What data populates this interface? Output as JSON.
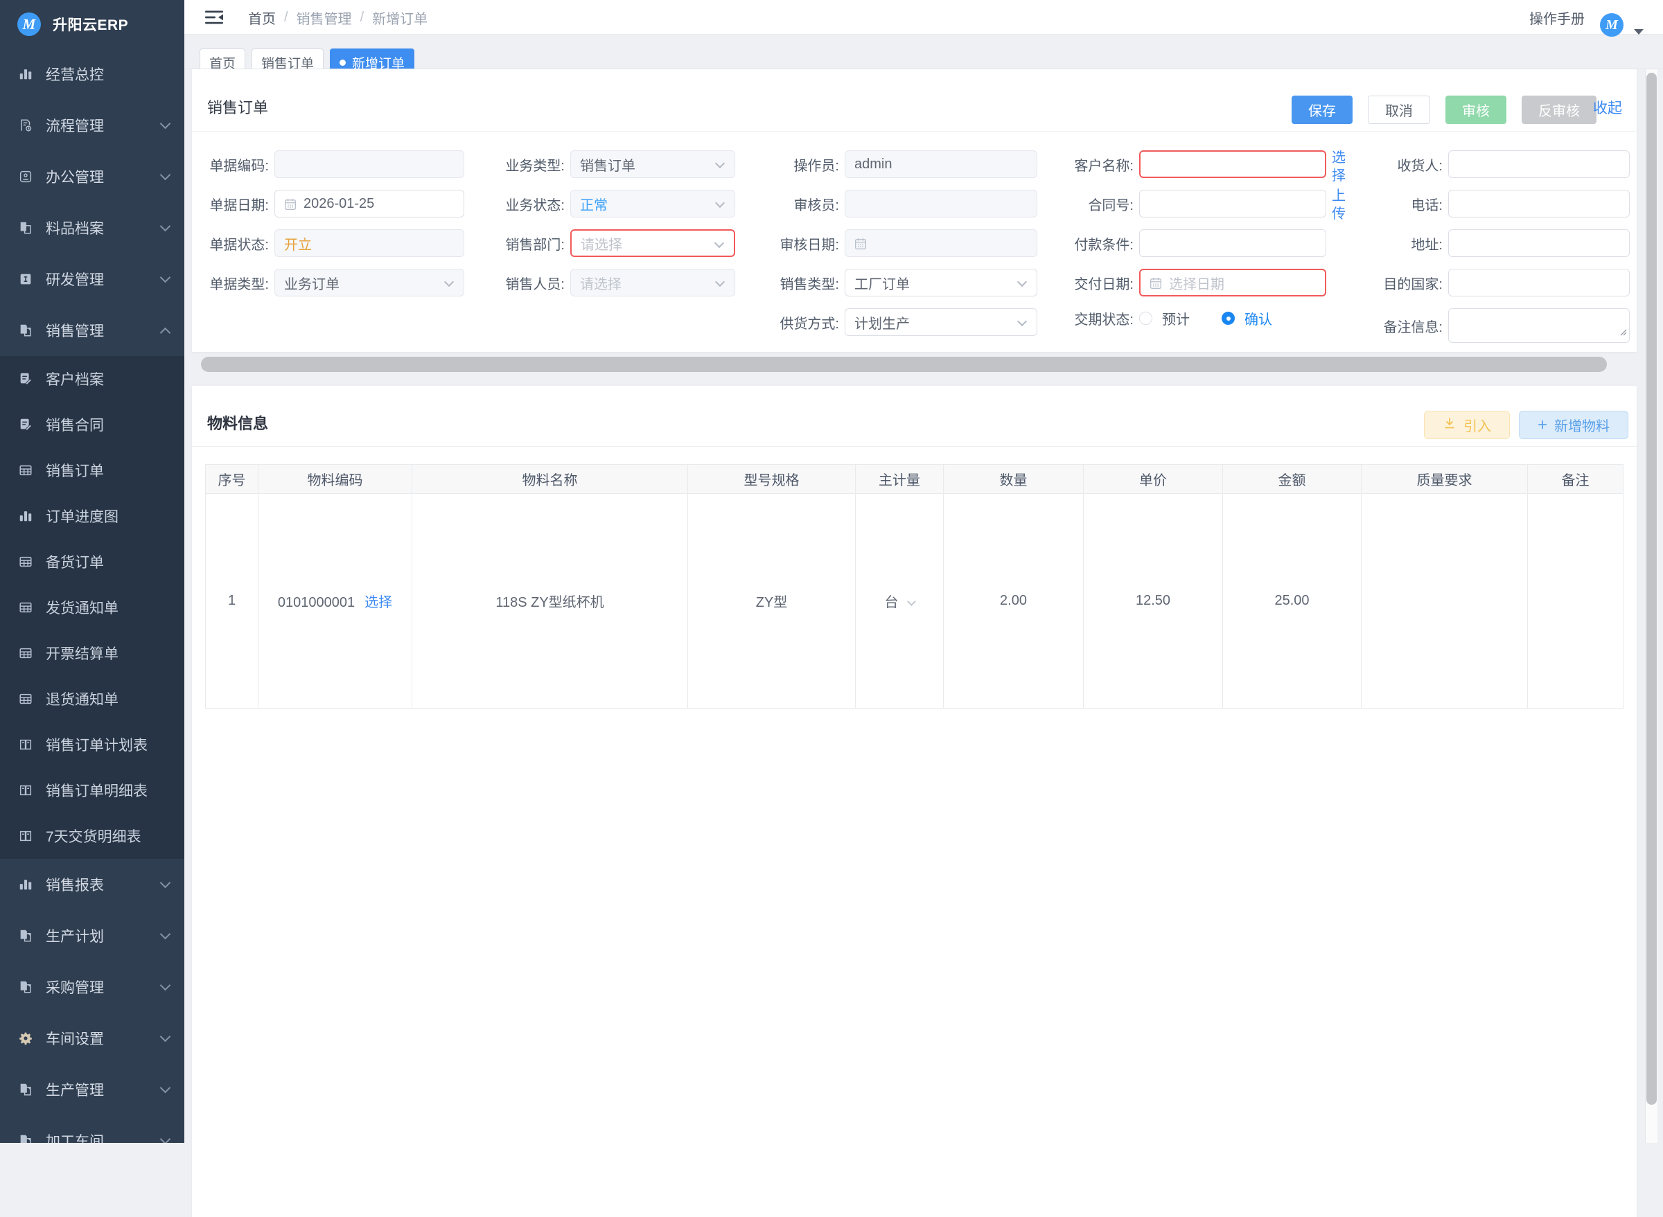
{
  "app": {
    "title": "升阳云ERP",
    "logo_letter": "M"
  },
  "topbar": {
    "breadcrumb": [
      "首页",
      "销售管理",
      "新增订单"
    ],
    "manual_link": "操作手册",
    "avatar_letter": "M"
  },
  "tabs": [
    {
      "label": "首页",
      "active": false
    },
    {
      "label": "销售订单",
      "active": false
    },
    {
      "label": "新增订单",
      "active": true
    }
  ],
  "sidebar": {
    "items": [
      {
        "label": "经营总控",
        "icon": "chart"
      },
      {
        "label": "流程管理",
        "icon": "flow"
      },
      {
        "label": "办公管理",
        "icon": "office"
      },
      {
        "label": "料品档案",
        "icon": "files"
      },
      {
        "label": "研发管理",
        "icon": "dev"
      },
      {
        "label": "销售管理",
        "icon": "pages",
        "expanded": true
      },
      {
        "label": "客户档案",
        "icon": "docedit",
        "sub": true
      },
      {
        "label": "销售合同",
        "icon": "docedit",
        "sub": true
      },
      {
        "label": "销售订单",
        "icon": "table",
        "sub": true
      },
      {
        "label": "订单进度图",
        "icon": "chart",
        "sub": true
      },
      {
        "label": "备货订单",
        "icon": "table",
        "sub": true
      },
      {
        "label": "发货通知单",
        "icon": "table",
        "sub": true
      },
      {
        "label": "开票结算单",
        "icon": "table",
        "sub": true
      },
      {
        "label": "退货通知单",
        "icon": "table",
        "sub": true
      },
      {
        "label": "销售订单计划表",
        "icon": "book",
        "sub": true
      },
      {
        "label": "销售订单明细表",
        "icon": "book",
        "sub": true
      },
      {
        "label": "7天交货明细表",
        "icon": "book",
        "sub": true
      },
      {
        "label": "销售报表",
        "icon": "chart"
      },
      {
        "label": "生产计划",
        "icon": "pages"
      },
      {
        "label": "采购管理",
        "icon": "pages"
      },
      {
        "label": "车间设置",
        "icon": "gear"
      },
      {
        "label": "生产管理",
        "icon": "pages"
      },
      {
        "label": "加工车间",
        "icon": "pages"
      }
    ]
  },
  "order": {
    "title": "销售订单",
    "actions": {
      "save": "保存",
      "cancel": "取消",
      "audit": "审核",
      "unaudit": "反审核",
      "collapse": "收起"
    },
    "fields": {
      "doc_code": {
        "label": "单据编码:",
        "value": ""
      },
      "doc_date": {
        "label": "单据日期:",
        "value": "2026-01-25"
      },
      "doc_status": {
        "label": "单据状态:",
        "value": "开立"
      },
      "doc_type": {
        "label": "单据类型:",
        "value": "业务订单"
      },
      "biz_type": {
        "label": "业务类型:",
        "value": "销售订单"
      },
      "biz_status": {
        "label": "业务状态:",
        "value": "正常"
      },
      "sales_dept": {
        "label": "销售部门:",
        "placeholder": "请选择"
      },
      "sales_person": {
        "label": "销售人员:",
        "placeholder": "请选择"
      },
      "operator": {
        "label": "操作员:",
        "value": "admin"
      },
      "auditor": {
        "label": "审核员:",
        "value": ""
      },
      "audit_date": {
        "label": "审核日期:",
        "value": ""
      },
      "sales_type": {
        "label": "销售类型:",
        "value": "工厂订单"
      },
      "supply_mode": {
        "label": "供货方式:",
        "value": "计划生产"
      },
      "customer": {
        "label": "客户名称:",
        "value": "",
        "link": "选择"
      },
      "contract_no": {
        "label": "合同号:",
        "value": "",
        "link": "上传"
      },
      "payment_terms": {
        "label": "付款条件:",
        "value": ""
      },
      "delivery_date": {
        "label": "交付日期:",
        "placeholder": "选择日期"
      },
      "delivery_status": {
        "label": "交期状态:",
        "options": [
          {
            "label": "预计",
            "checked": false
          },
          {
            "label": "确认",
            "checked": true
          }
        ]
      },
      "consignee": {
        "label": "收货人:",
        "value": ""
      },
      "phone": {
        "label": "电话:",
        "value": ""
      },
      "address": {
        "label": "地址:",
        "value": ""
      },
      "dest_country": {
        "label": "目的国家:",
        "value": ""
      },
      "remark": {
        "label": "备注信息:",
        "value": ""
      }
    }
  },
  "materials": {
    "title": "物料信息",
    "import_button": "引入",
    "add_button": "新增物料",
    "table": {
      "columns": [
        "序号",
        "物料编码",
        "物料名称",
        "型号规格",
        "主计量",
        "数量",
        "单价",
        "金额",
        "质量要求",
        "备注"
      ],
      "rows": [
        {
          "index": "1",
          "code": "0101000001",
          "select_link": "选择",
          "name": "118S ZY型纸杯机",
          "spec": "ZY型",
          "unit": "台",
          "qty": "2.00",
          "price": "12.50",
          "amount": "25.00",
          "quality": "",
          "remark": ""
        }
      ]
    }
  },
  "colors": {
    "primary_blue": "#3e8df0",
    "link_blue": "#3d8af2",
    "audit_green": "#8fd9ab",
    "disabled_gray": "#c8cacd",
    "status_orange": "#e6a23c",
    "status_blue": "#3da2f8",
    "error_red": "#f25a5a",
    "sidebar_bg": "#2f3e51",
    "submenu_bg": "#263445",
    "import_yellow": "#f3c152",
    "add_blue": "#5aa0e8"
  }
}
